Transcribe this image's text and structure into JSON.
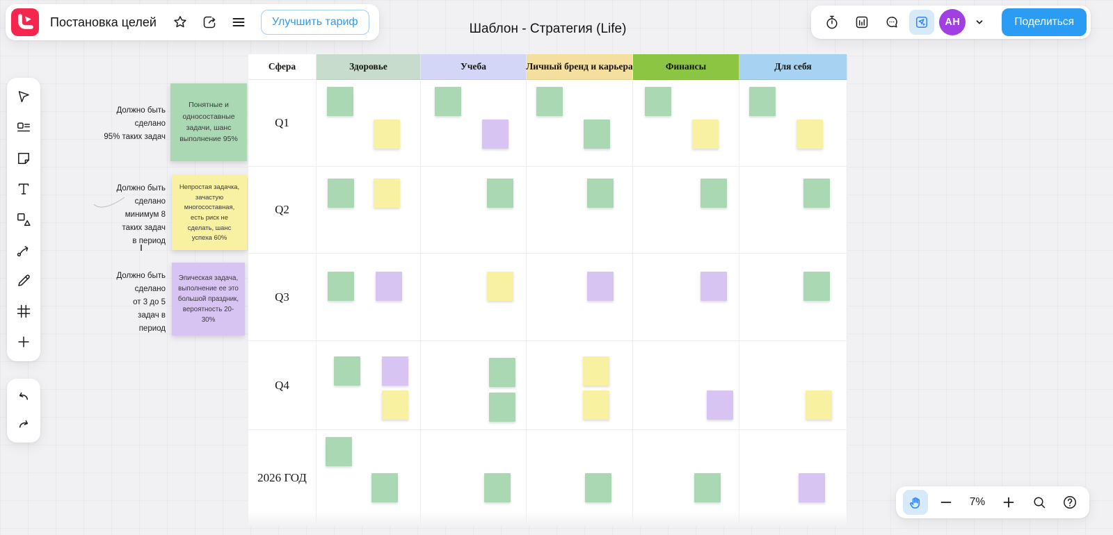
{
  "header": {
    "doc_title": "Постановка целей",
    "upgrade_label": "Улучшить тариф",
    "avatar_initials": "AH",
    "share_label": "Поделиться"
  },
  "board": {
    "title": "Шаблон - Стратегия (Life)"
  },
  "toolbar_tools": [
    "select",
    "frames-list",
    "sticky-note",
    "text",
    "shapes",
    "connector",
    "pen",
    "frame",
    "add",
    "undo",
    "redo"
  ],
  "top_right_tools": [
    "timer",
    "statistics",
    "comments",
    "laser-pointer"
  ],
  "legend": [
    {
      "color": "green",
      "caption_lines": [
        "Должно быть",
        "сделано",
        "95% таких задач"
      ],
      "note": "Понятные и односоставные задачи, шанс выполнение 95%"
    },
    {
      "color": "yellow",
      "caption_lines": [
        "Должно быть",
        "сделано",
        "минимум 8",
        "таких задач",
        "в период"
      ],
      "note": "Непростая задачка, зачастую многосоставная, есть риск не сделать, шанс успеха 60%"
    },
    {
      "color": "purple",
      "caption_lines": [
        "Должно быть",
        "сделано",
        "от 3 до 5",
        "задач в",
        "период"
      ],
      "note": "Эпическая задача, выполнение ее это большой праздник, вероятность 20-30%"
    }
  ],
  "table": {
    "corner": "Сфера",
    "columns": [
      {
        "label": "Здоровье",
        "color": "#c7dccd"
      },
      {
        "label": "Учеба",
        "color": "#d3d6f6"
      },
      {
        "label": "Личный бренд и карьера",
        "color": "#f4df9e"
      },
      {
        "label": "Финансы",
        "color": "#8bc541"
      },
      {
        "label": "Для себя",
        "color": "#a7d2f1"
      }
    ],
    "rows": [
      {
        "label": "Q1",
        "cells": [
          [
            {
              "c": "green",
              "x": 10,
              "y": 8
            },
            {
              "c": "yellow",
              "x": 55,
              "y": 46
            }
          ],
          [
            {
              "c": "green",
              "x": 13,
              "y": 8
            },
            {
              "c": "purple",
              "x": 58,
              "y": 46
            }
          ],
          [
            {
              "c": "green",
              "x": 9,
              "y": 8
            },
            {
              "c": "green",
              "x": 54,
              "y": 46
            }
          ],
          [
            {
              "c": "green",
              "x": 11,
              "y": 8
            },
            {
              "c": "yellow",
              "x": 56,
              "y": 46
            }
          ],
          [
            {
              "c": "green",
              "x": 9,
              "y": 8
            },
            {
              "c": "yellow",
              "x": 53,
              "y": 46
            }
          ]
        ]
      },
      {
        "label": "Q2",
        "cells": [
          [
            {
              "c": "green",
              "x": 11,
              "y": 14
            },
            {
              "c": "yellow",
              "x": 55,
              "y": 14
            }
          ],
          [
            {
              "c": "green",
              "x": 63,
              "y": 14
            }
          ],
          [
            {
              "c": "green",
              "x": 57,
              "y": 14
            }
          ],
          [
            {
              "c": "green",
              "x": 64,
              "y": 14
            }
          ],
          [
            {
              "c": "green",
              "x": 60,
              "y": 14
            }
          ]
        ]
      },
      {
        "label": "Q3",
        "cells": [
          [
            {
              "c": "green",
              "x": 11,
              "y": 21
            },
            {
              "c": "purple",
              "x": 57,
              "y": 21
            }
          ],
          [
            {
              "c": "yellow",
              "x": 63,
              "y": 21
            }
          ],
          [
            {
              "c": "purple",
              "x": 57,
              "y": 21
            }
          ],
          [
            {
              "c": "purple",
              "x": 64,
              "y": 21
            }
          ],
          [
            {
              "c": "green",
              "x": 60,
              "y": 21
            }
          ]
        ]
      },
      {
        "label": "Q4",
        "cells": [
          [
            {
              "c": "green",
              "x": 17,
              "y": 17
            },
            {
              "c": "purple",
              "x": 63,
              "y": 17
            },
            {
              "c": "yellow",
              "x": 63,
              "y": 56
            }
          ],
          [
            {
              "c": "green",
              "x": 65,
              "y": 19
            },
            {
              "c": "green",
              "x": 65,
              "y": 58
            }
          ],
          [
            {
              "c": "yellow",
              "x": 53,
              "y": 17
            },
            {
              "c": "yellow",
              "x": 53,
              "y": 56
            }
          ],
          [
            {
              "c": "purple",
              "x": 70,
              "y": 56
            }
          ],
          [
            {
              "c": "yellow",
              "x": 62,
              "y": 56
            }
          ]
        ]
      },
      {
        "label": "2026 ГОД",
        "cells": [
          [
            {
              "c": "green",
              "x": 9,
              "y": 7
            },
            {
              "c": "green",
              "x": 53,
              "y": 45
            }
          ],
          [
            {
              "c": "green",
              "x": 60,
              "y": 45
            }
          ],
          [
            {
              "c": "green",
              "x": 55,
              "y": 45
            }
          ],
          [
            {
              "c": "green",
              "x": 58,
              "y": 45
            }
          ],
          [
            {
              "c": "purple",
              "x": 55,
              "y": 45
            }
          ]
        ]
      }
    ]
  },
  "zoom_controls": {
    "level": "7%"
  },
  "palette": {
    "sticky_green": "#a9d8b3",
    "sticky_yellow": "#f8f1a2",
    "sticky_purple": "#d8c4f3",
    "accent_blue": "#2b9cf4",
    "logo_red": "#f4264e",
    "avatar_purple": "#a13fe3"
  }
}
